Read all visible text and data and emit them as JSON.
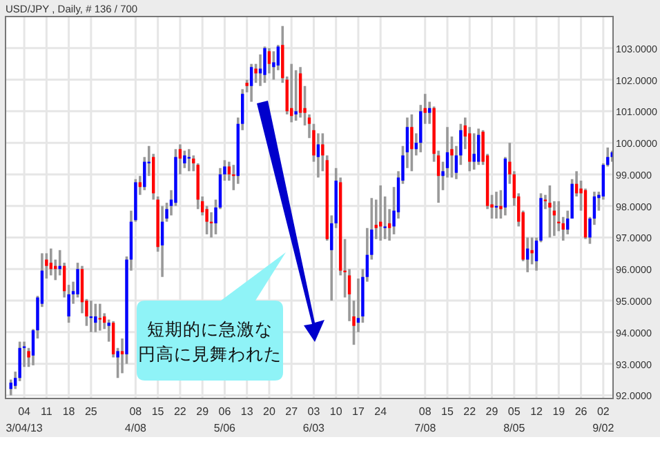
{
  "chart_data": {
    "type": "candlestick",
    "title": "USD/JPY , Daily, # 136 / 700",
    "categories": [
      null,
      null,
      null,
      "04\n3/04/13",
      null,
      null,
      null,
      null,
      "11",
      null,
      null,
      null,
      null,
      "18",
      null,
      null,
      null,
      null,
      "25",
      null,
      null,
      null,
      null,
      null,
      null,
      null,
      null,
      null,
      "08\n4/08",
      null,
      null,
      null,
      null,
      "15",
      null,
      null,
      null,
      null,
      "22",
      null,
      null,
      null,
      null,
      "29",
      null,
      null,
      null,
      null,
      "06\n5/06",
      null,
      null,
      null,
      null,
      "13",
      null,
      null,
      null,
      null,
      "20",
      null,
      null,
      null,
      null,
      "27",
      null,
      null,
      null,
      null,
      "03\n6/03",
      null,
      null,
      null,
      null,
      "10",
      null,
      null,
      null,
      null,
      "17",
      null,
      null,
      null,
      null,
      "24",
      null,
      null,
      null,
      null,
      null,
      null,
      null,
      null,
      null,
      "08\n7/08",
      null,
      null,
      null,
      null,
      "15",
      null,
      null,
      null,
      null,
      "22",
      null,
      null,
      null,
      null,
      "29",
      null,
      null,
      null,
      null,
      "05\n8/05",
      null,
      null,
      null,
      null,
      "12",
      null,
      null,
      null,
      null,
      "19",
      null,
      null,
      null,
      null,
      "26",
      null,
      null,
      null,
      null,
      "02\n9/02",
      null,
      null
    ],
    "ohlc": [
      [
        92.2,
        92.5,
        92.0,
        92.4
      ],
      [
        92.3,
        92.75,
        92.2,
        92.55
      ],
      [
        92.55,
        93.7,
        92.45,
        93.5
      ],
      [
        93.5,
        93.7,
        92.9,
        93.55
      ],
      [
        93.4,
        93.5,
        92.9,
        93.2
      ],
      [
        93.26,
        94.1,
        92.95,
        94.06
      ],
      [
        94.06,
        95.15,
        93.8,
        95.1
      ],
      [
        94.9,
        96.5,
        94.8,
        95.95
      ],
      [
        96.3,
        96.5,
        95.7,
        96.1
      ],
      [
        96.2,
        96.65,
        95.8,
        96.0
      ],
      [
        96.1,
        96.3,
        95.65,
        96.0
      ],
      [
        96.0,
        96.6,
        95.8,
        96.1
      ],
      [
        96.1,
        96.2,
        95.1,
        95.3
      ],
      [
        94.5,
        95.5,
        94.3,
        95.2
      ],
      [
        95.2,
        95.6,
        94.9,
        95.3
      ],
      [
        95.2,
        96.2,
        95.1,
        96.0
      ],
      [
        96.0,
        96.1,
        94.6,
        94.95
      ],
      [
        95.0,
        95.05,
        94.2,
        94.5
      ],
      [
        94.45,
        95.0,
        94.0,
        94.5
      ],
      [
        94.3,
        94.9,
        94.0,
        94.5
      ],
      [
        94.45,
        94.9,
        94.05,
        94.4
      ],
      [
        94.5,
        94.6,
        94.1,
        94.3
      ],
      [
        94.2,
        94.4,
        93.7,
        94.3
      ],
      [
        94.3,
        94.35,
        93.2,
        93.3
      ],
      [
        93.2,
        93.5,
        92.55,
        93.4
      ],
      [
        93.4,
        93.8,
        92.7,
        93.3
      ],
      [
        93.3,
        96.4,
        93.0,
        96.3
      ],
      [
        96.3,
        97.85,
        95.95,
        97.5
      ],
      [
        97.55,
        98.85,
        97.5,
        98.75
      ],
      [
        98.75,
        98.95,
        98.35,
        98.6
      ],
      [
        98.6,
        99.55,
        98.5,
        99.4
      ],
      [
        99.35,
        99.9,
        98.95,
        99.4
      ],
      [
        99.55,
        99.65,
        98.2,
        98.4
      ],
      [
        98.2,
        98.3,
        96.55,
        96.7
      ],
      [
        96.75,
        98.0,
        95.75,
        97.5
      ],
      [
        97.6,
        98.1,
        97.5,
        97.9
      ],
      [
        98.0,
        98.5,
        97.7,
        98.2
      ],
      [
        98.1,
        99.8,
        98.0,
        99.55
      ],
      [
        99.8,
        99.95,
        99.0,
        99.5
      ],
      [
        99.35,
        99.75,
        99.2,
        99.6
      ],
      [
        99.5,
        99.8,
        99.1,
        99.55
      ],
      [
        99.5,
        99.6,
        99.1,
        99.35
      ],
      [
        99.3,
        99.35,
        97.9,
        98.2
      ],
      [
        98.15,
        98.3,
        97.7,
        97.8
      ],
      [
        97.9,
        98.0,
        97.1,
        97.5
      ],
      [
        97.5,
        97.8,
        97.0,
        97.45
      ],
      [
        97.45,
        98.2,
        97.1,
        97.95
      ],
      [
        97.95,
        99.2,
        97.9,
        99.0
      ],
      [
        99.0,
        99.45,
        98.8,
        99.25
      ],
      [
        99.25,
        99.4,
        98.8,
        99.0
      ],
      [
        99.0,
        99.3,
        98.5,
        98.95
      ],
      [
        98.95,
        100.8,
        98.7,
        100.6
      ],
      [
        100.6,
        101.7,
        100.4,
        101.55
      ],
      [
        101.9,
        102.0,
        101.6,
        101.8
      ],
      [
        101.8,
        102.5,
        101.3,
        102.4
      ],
      [
        102.35,
        102.5,
        101.9,
        102.2
      ],
      [
        102.2,
        102.8,
        101.8,
        102.35
      ],
      [
        102.15,
        103.05,
        101.9,
        103.0
      ],
      [
        102.9,
        103.0,
        102.2,
        102.5
      ],
      [
        102.4,
        102.9,
        102.0,
        102.55
      ],
      [
        102.45,
        103.1,
        102.3,
        103.05
      ],
      [
        103.1,
        103.7,
        101.9,
        102.05
      ],
      [
        102.0,
        102.1,
        100.9,
        101.0
      ],
      [
        101.1,
        102.5,
        100.65,
        100.85
      ],
      [
        100.9,
        102.3,
        100.7,
        101.0
      ],
      [
        102.2,
        102.4,
        100.8,
        100.95
      ],
      [
        101.1,
        101.8,
        100.55,
        100.95
      ],
      [
        100.8,
        100.9,
        100.15,
        100.6
      ],
      [
        100.4,
        100.6,
        99.4,
        99.6
      ],
      [
        99.55,
        100.3,
        98.9,
        99.95
      ],
      [
        99.95,
        100.3,
        99.1,
        99.6
      ],
      [
        99.45,
        99.6,
        96.9,
        96.95
      ],
      [
        96.6,
        97.7,
        95.0,
        97.45
      ],
      [
        97.45,
        99.2,
        97.3,
        98.8
      ],
      [
        98.75,
        98.9,
        95.8,
        95.95
      ],
      [
        95.95,
        96.95,
        95.1,
        95.9
      ],
      [
        95.8,
        96.0,
        94.35,
        95.2
      ],
      [
        94.5,
        95.0,
        93.6,
        94.2
      ],
      [
        94.3,
        95.7,
        94.0,
        94.45
      ],
      [
        94.5,
        96.0,
        94.3,
        95.75
      ],
      [
        95.75,
        97.3,
        95.6,
        96.45
      ],
      [
        96.45,
        98.25,
        96.3,
        97.25
      ],
      [
        97.4,
        98.2,
        96.95,
        97.3
      ],
      [
        97.5,
        98.65,
        96.9,
        97.35
      ],
      [
        97.3,
        98.3,
        96.95,
        97.35
      ],
      [
        97.45,
        97.9,
        96.9,
        97.3
      ],
      [
        97.35,
        98.6,
        97.1,
        97.85
      ],
      [
        97.8,
        99.1,
        97.6,
        98.9
      ],
      [
        98.8,
        99.9,
        98.7,
        99.6
      ],
      [
        99.7,
        100.8,
        99.2,
        100.5
      ],
      [
        100.5,
        100.9,
        99.1,
        99.8
      ],
      [
        99.8,
        100.3,
        99.6,
        100.0
      ],
      [
        100.0,
        101.2,
        99.7,
        101.0
      ],
      [
        101.1,
        101.55,
        100.6,
        100.95
      ],
      [
        100.95,
        101.3,
        100.6,
        101.1
      ],
      [
        101.1,
        101.15,
        99.4,
        99.65
      ],
      [
        99.6,
        99.75,
        98.1,
        98.95
      ],
      [
        98.95,
        99.4,
        98.5,
        99.1
      ],
      [
        99.2,
        100.5,
        98.9,
        99.7
      ],
      [
        99.8,
        100.2,
        98.9,
        99.6
      ],
      [
        99.05,
        99.9,
        98.85,
        99.6
      ],
      [
        99.6,
        100.6,
        99.3,
        100.4
      ],
      [
        100.55,
        100.8,
        99.8,
        100.2
      ],
      [
        100.3,
        100.5,
        99.1,
        99.4
      ],
      [
        99.4,
        100.3,
        99.15,
        99.65
      ],
      [
        99.4,
        100.45,
        99.3,
        100.25
      ],
      [
        100.35,
        100.4,
        99.3,
        99.4
      ],
      [
        99.6,
        99.65,
        97.9,
        98.0
      ],
      [
        98.05,
        98.35,
        97.6,
        97.95
      ],
      [
        97.95,
        98.45,
        97.6,
        98.0
      ],
      [
        98.0,
        98.5,
        97.6,
        97.9
      ],
      [
        97.95,
        99.55,
        97.7,
        99.5
      ],
      [
        99.4,
        100.0,
        98.7,
        99.0
      ],
      [
        99.0,
        99.1,
        98.0,
        98.25
      ],
      [
        98.3,
        98.4,
        97.35,
        97.5
      ],
      [
        97.8,
        97.85,
        96.25,
        96.3
      ],
      [
        96.3,
        97.0,
        95.9,
        96.65
      ],
      [
        96.6,
        97.0,
        96.15,
        96.5
      ],
      [
        96.25,
        97.0,
        95.95,
        96.9
      ],
      [
        96.9,
        98.4,
        96.85,
        98.25
      ],
      [
        98.2,
        98.35,
        97.9,
        98.15
      ],
      [
        98.1,
        98.65,
        97.0,
        97.95
      ],
      [
        97.85,
        98.15,
        97.05,
        97.7
      ],
      [
        97.5,
        98.15,
        97.2,
        97.45
      ],
      [
        97.45,
        97.65,
        96.9,
        97.25
      ],
      [
        97.25,
        97.85,
        97.1,
        97.6
      ],
      [
        97.6,
        98.85,
        97.6,
        98.7
      ],
      [
        98.7,
        99.1,
        98.3,
        98.4
      ],
      [
        98.55,
        98.8,
        97.85,
        98.4
      ],
      [
        98.5,
        98.55,
        96.95,
        97.0
      ],
      [
        97.0,
        97.65,
        96.8,
        97.6
      ],
      [
        97.6,
        98.45,
        97.4,
        98.3
      ],
      [
        98.25,
        98.45,
        97.85,
        98.35
      ],
      [
        98.3,
        99.35,
        98.2,
        99.3
      ],
      [
        99.3,
        99.85,
        99.25,
        99.55
      ],
      [
        99.55,
        99.75,
        99.4,
        99.7
      ]
    ],
    "ylim": [
      91.9,
      104.0
    ],
    "yticks": [
      {
        "value": 92,
        "label": "92.0000"
      },
      {
        "value": 93,
        "label": "93.0000"
      },
      {
        "value": 94,
        "label": "94.0000"
      },
      {
        "value": 95,
        "label": "95.0000"
      },
      {
        "value": 96,
        "label": "96.0000"
      },
      {
        "value": 97,
        "label": "97.0000"
      },
      {
        "value": 98,
        "label": "98.0000"
      },
      {
        "value": 99,
        "label": "99.0000"
      },
      {
        "value": 100,
        "label": "100.0000"
      },
      {
        "value": 101,
        "label": "101.0000"
      },
      {
        "value": 102,
        "label": "102.0000"
      },
      {
        "value": 103,
        "label": "103.0000"
      }
    ],
    "grid": true,
    "annotations": [
      "短期的に急激な",
      "円高に見舞われた"
    ]
  }
}
